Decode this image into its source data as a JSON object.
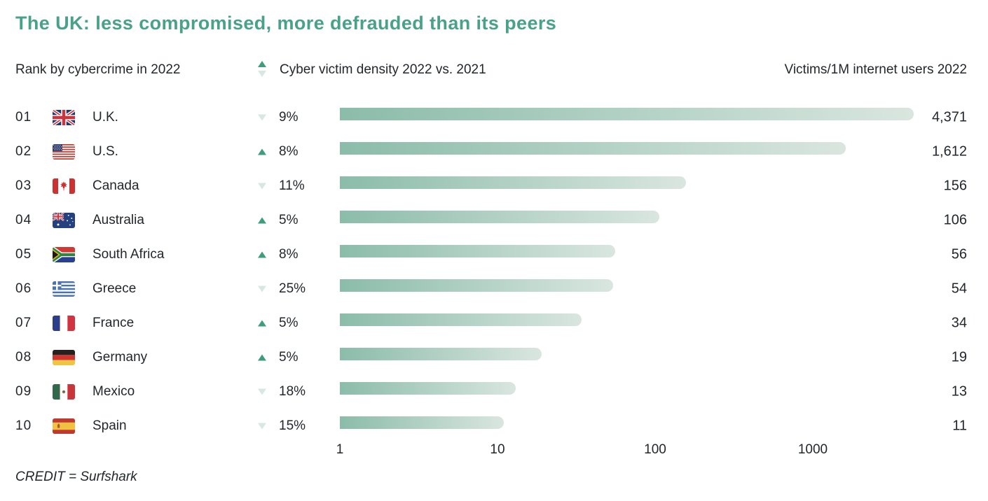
{
  "title": "The UK: less compromised, more defrauded than its peers",
  "header": {
    "rank_label": "Rank by cybercrime in 2022",
    "density_label": "Cyber victim density 2022 vs. 2021",
    "victims_label": "Victims/1M internet users 2022"
  },
  "credit": "CREDIT = Surfshark",
  "colors": {
    "accent": "#4aa189",
    "up_arrow": "#3f9d7e",
    "down_arrow": "#d7e8e0",
    "bar_gradient_start": "#8bbcaa",
    "bar_gradient_end": "#d9e6df",
    "text": "#22272c"
  },
  "chart_data": {
    "type": "bar",
    "orientation": "horizontal",
    "x_scale": "log",
    "xlabel": "Victims/1M internet users 2022",
    "x_axis": {
      "ticks": [
        1,
        10,
        100,
        1000
      ],
      "min": 1,
      "max": 4500
    },
    "legend": "triangle up = density increased, triangle down = density decreased vs 2021",
    "rows": [
      {
        "rank": "01",
        "country": "U.K.",
        "flag": "uk",
        "trend": "down",
        "change_pct": "9%",
        "victims_per_1m": 4371,
        "victims_display": "4,371"
      },
      {
        "rank": "02",
        "country": "U.S.",
        "flag": "us",
        "trend": "up",
        "change_pct": "8%",
        "victims_per_1m": 1612,
        "victims_display": "1,612"
      },
      {
        "rank": "03",
        "country": "Canada",
        "flag": "canada",
        "trend": "down",
        "change_pct": "11%",
        "victims_per_1m": 156,
        "victims_display": "156"
      },
      {
        "rank": "04",
        "country": "Australia",
        "flag": "australia",
        "trend": "up",
        "change_pct": "5%",
        "victims_per_1m": 106,
        "victims_display": "106"
      },
      {
        "rank": "05",
        "country": "South Africa",
        "flag": "south-africa",
        "trend": "up",
        "change_pct": "8%",
        "victims_per_1m": 56,
        "victims_display": "56"
      },
      {
        "rank": "06",
        "country": "Greece",
        "flag": "greece",
        "trend": "down",
        "change_pct": "25%",
        "victims_per_1m": 54,
        "victims_display": "54"
      },
      {
        "rank": "07",
        "country": "France",
        "flag": "france",
        "trend": "up",
        "change_pct": "5%",
        "victims_per_1m": 34,
        "victims_display": "34"
      },
      {
        "rank": "08",
        "country": "Germany",
        "flag": "germany",
        "trend": "up",
        "change_pct": "5%",
        "victims_per_1m": 19,
        "victims_display": "19"
      },
      {
        "rank": "09",
        "country": "Mexico",
        "flag": "mexico",
        "trend": "down",
        "change_pct": "18%",
        "victims_per_1m": 13,
        "victims_display": "13"
      },
      {
        "rank": "10",
        "country": "Spain",
        "flag": "spain",
        "trend": "down",
        "change_pct": "15%",
        "victims_per_1m": 11,
        "victims_display": "11"
      }
    ]
  }
}
